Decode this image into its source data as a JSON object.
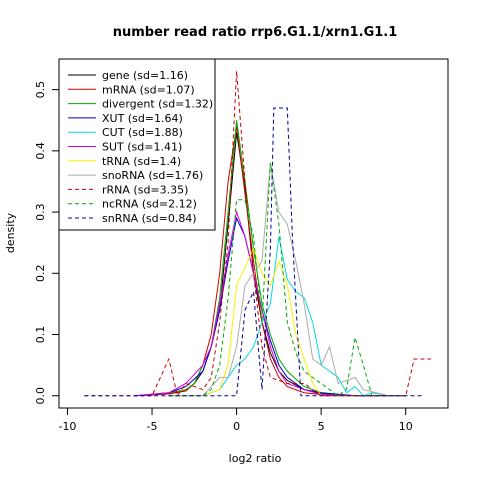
{
  "chart_data": {
    "type": "line",
    "title": "number read ratio rrp6.G1.1/xrn1.G1.1",
    "xlabel": "log2 ratio",
    "ylabel": "density",
    "xlim": [
      -10.5,
      12.5
    ],
    "ylim": [
      -0.02,
      0.55
    ],
    "xticks": [
      -10,
      -5,
      0,
      5,
      10
    ],
    "yticks": [
      0.0,
      0.1,
      0.2,
      0.3,
      0.4,
      0.5
    ],
    "legend_position": "top-left",
    "grid": false,
    "series": [
      {
        "name": "gene (sd=1.16)",
        "color": "#000000",
        "dash": "solid",
        "points": [
          [
            -6,
            0
          ],
          [
            -4,
            0.003
          ],
          [
            -3,
            0.008
          ],
          [
            -2.5,
            0.02
          ],
          [
            -2,
            0.04
          ],
          [
            -1.5,
            0.08
          ],
          [
            -1,
            0.14
          ],
          [
            -0.5,
            0.28
          ],
          [
            0,
            0.43
          ],
          [
            0.5,
            0.34
          ],
          [
            1,
            0.2
          ],
          [
            1.5,
            0.12
          ],
          [
            2,
            0.07
          ],
          [
            2.5,
            0.04
          ],
          [
            3,
            0.025
          ],
          [
            4,
            0.01
          ],
          [
            5,
            0.004
          ],
          [
            7,
            0
          ],
          [
            10,
            0
          ]
        ]
      },
      {
        "name": "mRNA (sd=1.07)",
        "color": "#cc0000",
        "dash": "solid",
        "points": [
          [
            -6,
            0
          ],
          [
            -4,
            0.003
          ],
          [
            -3,
            0.008
          ],
          [
            -2.5,
            0.02
          ],
          [
            -2,
            0.05
          ],
          [
            -1.5,
            0.1
          ],
          [
            -1,
            0.2
          ],
          [
            -0.5,
            0.35
          ],
          [
            0,
            0.44
          ],
          [
            0.5,
            0.33
          ],
          [
            1,
            0.22
          ],
          [
            1.5,
            0.12
          ],
          [
            2,
            0.06
          ],
          [
            2.5,
            0.03
          ],
          [
            3,
            0.015
          ],
          [
            4,
            0.005
          ],
          [
            5,
            0.002
          ],
          [
            7,
            0
          ]
        ]
      },
      {
        "name": "divergent (sd=1.32)",
        "color": "#00aa00",
        "dash": "solid",
        "points": [
          [
            -6,
            0
          ],
          [
            -4,
            0.005
          ],
          [
            -3,
            0.01
          ],
          [
            -2.5,
            0.02
          ],
          [
            -2,
            0.05
          ],
          [
            -1.5,
            0.08
          ],
          [
            -1,
            0.16
          ],
          [
            -0.5,
            0.3
          ],
          [
            0,
            0.45
          ],
          [
            0.5,
            0.35
          ],
          [
            1,
            0.24
          ],
          [
            1.5,
            0.15
          ],
          [
            2,
            0.1
          ],
          [
            2.5,
            0.06
          ],
          [
            3,
            0.04
          ],
          [
            4,
            0.015
          ],
          [
            5,
            0.005
          ],
          [
            7,
            0
          ]
        ]
      },
      {
        "name": "XUT (sd=1.64)",
        "color": "#0000cc",
        "dash": "solid",
        "points": [
          [
            -6,
            0
          ],
          [
            -4,
            0.005
          ],
          [
            -3,
            0.015
          ],
          [
            -2,
            0.04
          ],
          [
            -1.5,
            0.08
          ],
          [
            -1,
            0.14
          ],
          [
            -0.5,
            0.22
          ],
          [
            0,
            0.29
          ],
          [
            0.5,
            0.26
          ],
          [
            1,
            0.2
          ],
          [
            1.5,
            0.14
          ],
          [
            2,
            0.09
          ],
          [
            2.5,
            0.05
          ],
          [
            3,
            0.03
          ],
          [
            4,
            0.01
          ],
          [
            5,
            0.005
          ],
          [
            7,
            0
          ]
        ]
      },
      {
        "name": "CUT (sd=1.88)",
        "color": "#00dddd",
        "dash": "solid",
        "points": [
          [
            -4,
            0
          ],
          [
            -2,
            0
          ],
          [
            -1,
            0.01
          ],
          [
            0,
            0.05
          ],
          [
            0.5,
            0.06
          ],
          [
            1,
            0.08
          ],
          [
            1.5,
            0.12
          ],
          [
            2,
            0.15
          ],
          [
            2.5,
            0.26
          ],
          [
            3,
            0.19
          ],
          [
            3.5,
            0.17
          ],
          [
            4,
            0.16
          ],
          [
            4.5,
            0.12
          ],
          [
            5,
            0.05
          ],
          [
            6,
            0.03
          ],
          [
            6.5,
            0.005
          ],
          [
            7,
            0.015
          ],
          [
            7.5,
            0.0
          ],
          [
            8,
            0.005
          ],
          [
            9,
            0
          ],
          [
            10,
            0
          ]
        ]
      },
      {
        "name": "SUT (sd=1.41)",
        "color": "#dd00dd",
        "dash": "solid",
        "points": [
          [
            -6,
            0
          ],
          [
            -4,
            0.005
          ],
          [
            -3,
            0.02
          ],
          [
            -2,
            0.05
          ],
          [
            -1.5,
            0.08
          ],
          [
            -1,
            0.15
          ],
          [
            -0.5,
            0.23
          ],
          [
            0,
            0.3
          ],
          [
            0.5,
            0.26
          ],
          [
            1,
            0.2
          ],
          [
            1.5,
            0.14
          ],
          [
            2,
            0.08
          ],
          [
            2.5,
            0.04
          ],
          [
            3,
            0.02
          ],
          [
            4,
            0.01
          ],
          [
            5,
            0.002
          ],
          [
            7,
            0
          ]
        ]
      },
      {
        "name": "tRNA (sd=1.4)",
        "color": "#ffee00",
        "dash": "solid",
        "points": [
          [
            -4,
            0
          ],
          [
            -2,
            0
          ],
          [
            -1,
            0.01
          ],
          [
            -0.5,
            0.05
          ],
          [
            0,
            0.18
          ],
          [
            0.5,
            0.21
          ],
          [
            1,
            0.24
          ],
          [
            1.5,
            0.2
          ],
          [
            2,
            0.18
          ],
          [
            2.5,
            0.22
          ],
          [
            3,
            0.18
          ],
          [
            3.5,
            0.1
          ],
          [
            4,
            0.06
          ],
          [
            4.5,
            0.02
          ],
          [
            5,
            0
          ],
          [
            7,
            0
          ]
        ]
      },
      {
        "name": "snoRNA (sd=1.76)",
        "color": "#aaaaaa",
        "dash": "solid",
        "points": [
          [
            -4,
            0
          ],
          [
            -2,
            0
          ],
          [
            -1,
            0.03
          ],
          [
            -0.5,
            0.03
          ],
          [
            0,
            0.08
          ],
          [
            0.5,
            0.18
          ],
          [
            1,
            0.2
          ],
          [
            1.5,
            0.22
          ],
          [
            2,
            0.38
          ],
          [
            2.5,
            0.3
          ],
          [
            3,
            0.28
          ],
          [
            3.5,
            0.22
          ],
          [
            4,
            0.15
          ],
          [
            4.5,
            0.06
          ],
          [
            5,
            0.05
          ],
          [
            5.5,
            0.08
          ],
          [
            6,
            0.02
          ],
          [
            7,
            0.03
          ],
          [
            7.5,
            0.01
          ],
          [
            9,
            0
          ]
        ]
      },
      {
        "name": "rRNA (sd=3.35)",
        "color": "#cc0000",
        "dash": "dashed",
        "points": [
          [
            -9,
            0
          ],
          [
            -5,
            0
          ],
          [
            -4,
            0.06
          ],
          [
            -3.5,
            0.0
          ],
          [
            -3,
            0.02
          ],
          [
            -2,
            0.01
          ],
          [
            -1.5,
            0.03
          ],
          [
            -1,
            0.12
          ],
          [
            -0.5,
            0.25
          ],
          [
            0,
            0.53
          ],
          [
            0.5,
            0.35
          ],
          [
            1,
            0.2
          ],
          [
            1.5,
            0.08
          ],
          [
            2,
            0.03
          ],
          [
            3,
            0.02
          ],
          [
            4,
            0.02
          ],
          [
            5,
            0
          ],
          [
            10,
            0
          ],
          [
            10.5,
            0.06
          ],
          [
            11.5,
            0.06
          ]
        ]
      },
      {
        "name": "ncRNA (sd=2.12)",
        "color": "#00aa00",
        "dash": "dashed",
        "points": [
          [
            -4,
            0
          ],
          [
            -2,
            0
          ],
          [
            -1.5,
            0.01
          ],
          [
            -1,
            0.05
          ],
          [
            -0.5,
            0.16
          ],
          [
            0,
            0.32
          ],
          [
            0.5,
            0.32
          ],
          [
            1,
            0.26
          ],
          [
            1.5,
            0.12
          ],
          [
            2,
            0.38
          ],
          [
            2.5,
            0.28
          ],
          [
            3,
            0.12
          ],
          [
            3.5,
            0.07
          ],
          [
            4,
            0.04
          ],
          [
            5,
            0.02
          ],
          [
            6,
            0.0
          ],
          [
            6.5,
            0.01
          ],
          [
            7,
            0.095
          ],
          [
            7.5,
            0.05
          ],
          [
            8,
            0.0
          ],
          [
            9,
            0
          ]
        ]
      },
      {
        "name": "snRNA (sd=0.84)",
        "color": "#000099",
        "dash": "dashed",
        "points": [
          [
            -9,
            0
          ],
          [
            0,
            0
          ],
          [
            0.5,
            0.14
          ],
          [
            1,
            0.17
          ],
          [
            1.5,
            0.01
          ],
          [
            2,
            0.24
          ],
          [
            2.2,
            0.47
          ],
          [
            3,
            0.47
          ],
          [
            3.3,
            0.26
          ],
          [
            3.8,
            0.0
          ],
          [
            5,
            0
          ],
          [
            11,
            0
          ]
        ]
      }
    ]
  }
}
